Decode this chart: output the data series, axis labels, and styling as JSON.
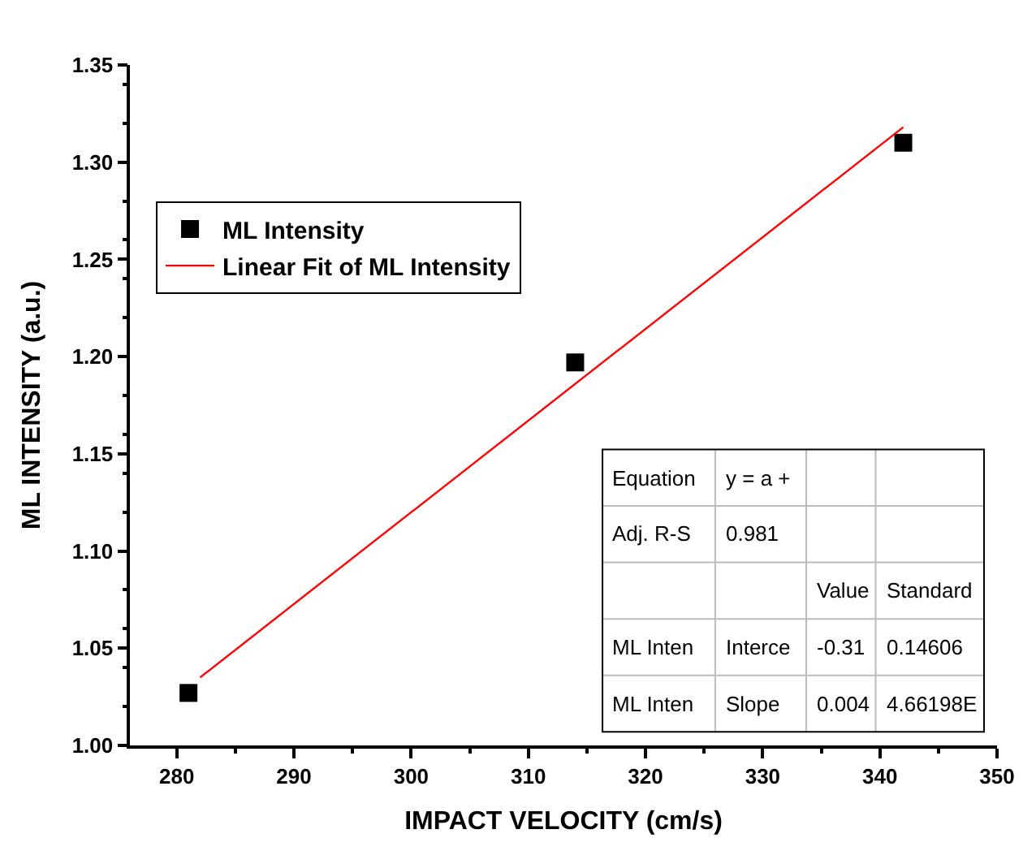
{
  "chart_data": {
    "type": "scatter",
    "xlabel": "IMPACT VELOCITY (cm/s)",
    "ylabel": "ML INTENSITY (a.u.)",
    "xlim": [
      276,
      350
    ],
    "xticks": [
      280,
      290,
      300,
      310,
      320,
      330,
      340,
      350
    ],
    "ylim": [
      1.0,
      1.35
    ],
    "yticks": [
      {
        "value": 1.0,
        "label": "1.00"
      },
      {
        "value": 1.05,
        "label": "1.05"
      },
      {
        "value": 1.1,
        "label": "1.10"
      },
      {
        "value": 1.15,
        "label": "1.15"
      },
      {
        "value": 1.2,
        "label": "1.20"
      },
      {
        "value": 1.25,
        "label": "1.25"
      },
      {
        "value": 1.3,
        "label": "1.30"
      },
      {
        "value": 1.35,
        "label": "1.35"
      }
    ],
    "series": [
      {
        "name": "ML Intensity",
        "color": "#000000",
        "marker": "square",
        "x": [
          281,
          314,
          342
        ],
        "values": [
          1.027,
          1.197,
          1.31
        ]
      },
      {
        "name": "Linear Fit of ML Intensity",
        "type": "line",
        "color": "#ff0000",
        "marker": "none",
        "x": [
          282,
          342
        ],
        "values": [
          1.035,
          1.318
        ]
      }
    ],
    "annotations": [
      "Equation",
      "y = a +",
      "Adj. R-S",
      "0.981",
      "Value",
      "Standard",
      "ML Inten",
      "Interce",
      "-0.31",
      "0.14606",
      "ML Inten",
      "Slope",
      "0.004",
      "4.66198E"
    ],
    "legend": "top left"
  }
}
